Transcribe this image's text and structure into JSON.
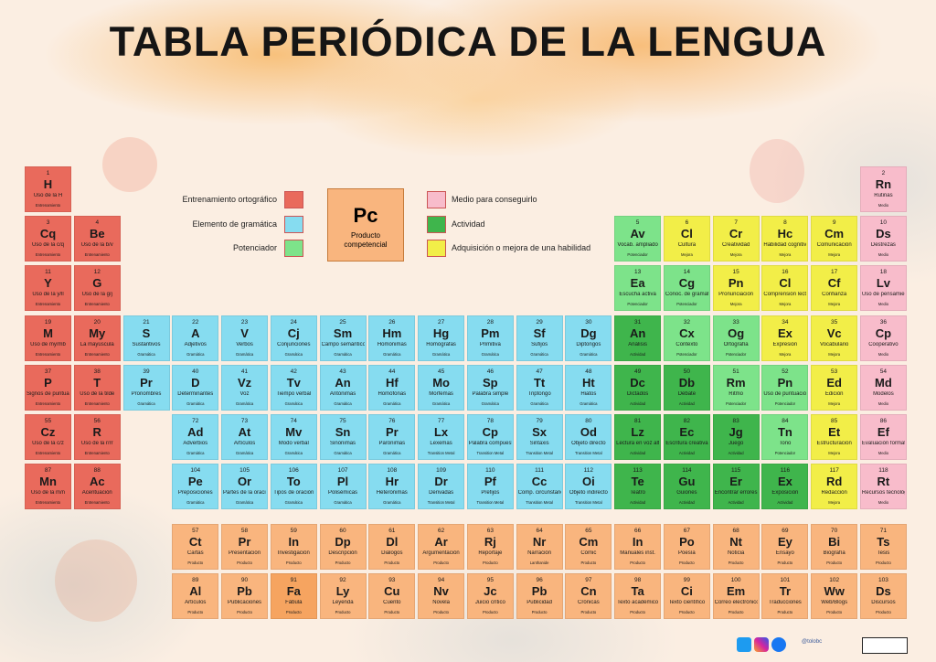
{
  "header": {
    "title": "TABLA PERIÓDICA DE LA LENGUA"
  },
  "legend": [
    {
      "label": "Entrenamiento ortográfico",
      "color": "#e96a5c"
    },
    {
      "label": "Elemento de gramática",
      "color": "#86dcf0"
    },
    {
      "label": "Potenciador",
      "color": "#7de38a"
    },
    {
      "label": "Medio para conseguirlo",
      "color": "#f8bccb"
    },
    {
      "label": "Actividad",
      "color": "#3fb54c"
    },
    {
      "label": "Adquisición o mejora de una habilidad",
      "color": "#f2ee48"
    }
  ],
  "key": {
    "symbol": "Pc",
    "label": "Producto competencial",
    "color": "#f9b57e"
  },
  "rows": [
    {
      "cells": [
        {
          "n": "1",
          "s": "H",
          "name": "Uso de la H",
          "cat": "Entrenamiento",
          "color": "#e96a5c"
        },
        {
          "n": "2",
          "s": "Rn",
          "name": "Rutinas",
          "cat": "Medio",
          "color": "#f8bccb"
        }
      ]
    },
    {
      "cells": [
        {
          "n": "3",
          "s": "Cq",
          "name": "Uso de la c/q",
          "cat": "Entrenamiento",
          "color": "#e96a5c"
        },
        {
          "n": "4",
          "s": "Be",
          "name": "Uso de la b/v",
          "cat": "Entrenamiento",
          "color": "#e96a5c"
        },
        {
          "n": "5",
          "s": "Av",
          "name": "Vocab. ampliado",
          "cat": "Potenciador",
          "color": "#7de38a"
        },
        {
          "n": "6",
          "s": "Cl",
          "name": "Cultura",
          "cat": "Mejora",
          "color": "#f2ee48"
        },
        {
          "n": "7",
          "s": "Cr",
          "name": "Creatividad",
          "cat": "Mejora",
          "color": "#f2ee48"
        },
        {
          "n": "8",
          "s": "Hc",
          "name": "Habilidad cognitiva",
          "cat": "Mejora",
          "color": "#f2ee48"
        },
        {
          "n": "9",
          "s": "Cm",
          "name": "Comunicación",
          "cat": "Mejora",
          "color": "#f2ee48"
        },
        {
          "n": "10",
          "s": "Ds",
          "name": "Destrezas",
          "cat": "Medio",
          "color": "#f8bccb"
        }
      ]
    },
    {
      "cells": [
        {
          "n": "11",
          "s": "Y",
          "name": "Uso de la y/ll",
          "cat": "Entrenamiento",
          "color": "#e96a5c"
        },
        {
          "n": "12",
          "s": "G",
          "name": "Uso de la g/j",
          "cat": "Entrenamiento",
          "color": "#e96a5c"
        },
        {
          "n": "13",
          "s": "Ea",
          "name": "Escucha activa",
          "cat": "Potenciador",
          "color": "#7de38a"
        },
        {
          "n": "14",
          "s": "Cg",
          "name": "Conoc. de gramática",
          "cat": "Potenciador",
          "color": "#7de38a"
        },
        {
          "n": "15",
          "s": "Pn",
          "name": "Pronunciación",
          "cat": "Mejora",
          "color": "#f2ee48"
        },
        {
          "n": "16",
          "s": "Cl",
          "name": "Comprensión lectora",
          "cat": "Mejora",
          "color": "#f2ee48"
        },
        {
          "n": "17",
          "s": "Cf",
          "name": "Confianza",
          "cat": "Mejora",
          "color": "#f2ee48"
        },
        {
          "n": "18",
          "s": "Lv",
          "name": "Uso de pensamiento",
          "cat": "Medio",
          "color": "#f8bccb"
        }
      ]
    },
    {
      "cells": [
        {
          "n": "19",
          "s": "M",
          "name": "Uso de my/mb",
          "cat": "Entrenamiento",
          "color": "#e96a5c"
        },
        {
          "n": "20",
          "s": "My",
          "name": "La mayúscula",
          "cat": "Entrenamiento",
          "color": "#e96a5c"
        },
        {
          "n": "21",
          "s": "S",
          "name": "Sustantivos",
          "cat": "Gramática",
          "color": "#86dcf0"
        },
        {
          "n": "22",
          "s": "A",
          "name": "Adjetivos",
          "cat": "Gramática",
          "color": "#86dcf0"
        },
        {
          "n": "23",
          "s": "V",
          "name": "Verbos",
          "cat": "Gramática",
          "color": "#86dcf0"
        },
        {
          "n": "24",
          "s": "Cj",
          "name": "Conjunciones",
          "cat": "Gramática",
          "color": "#86dcf0"
        },
        {
          "n": "25",
          "s": "Sm",
          "name": "Campo semántico",
          "cat": "Gramática",
          "color": "#86dcf0"
        },
        {
          "n": "26",
          "s": "Hm",
          "name": "Homónimas",
          "cat": "Gramática",
          "color": "#86dcf0"
        },
        {
          "n": "27",
          "s": "Hg",
          "name": "Homógrafas",
          "cat": "Gramática",
          "color": "#86dcf0"
        },
        {
          "n": "28",
          "s": "Pm",
          "name": "Primitiva",
          "cat": "Gramática",
          "color": "#86dcf0"
        },
        {
          "n": "29",
          "s": "Sf",
          "name": "Sufijos",
          "cat": "Gramática",
          "color": "#86dcf0"
        },
        {
          "n": "30",
          "s": "Dg",
          "name": "Diptongos",
          "cat": "Gramática",
          "color": "#86dcf0"
        },
        {
          "n": "31",
          "s": "An",
          "name": "Análisis",
          "cat": "Actividad",
          "color": "#3fb54c"
        },
        {
          "n": "32",
          "s": "Cx",
          "name": "Contexto",
          "cat": "Potenciador",
          "color": "#7de38a"
        },
        {
          "n": "33",
          "s": "Og",
          "name": "Ortografía",
          "cat": "Potenciador",
          "color": "#7de38a"
        },
        {
          "n": "34",
          "s": "Ex",
          "name": "Expresión",
          "cat": "Mejora",
          "color": "#f2ee48"
        },
        {
          "n": "35",
          "s": "Vc",
          "name": "Vocabulario",
          "cat": "Mejora",
          "color": "#f2ee48"
        },
        {
          "n": "36",
          "s": "Cp",
          "name": "Cooperativo",
          "cat": "Medio",
          "color": "#f8bccb"
        }
      ]
    },
    {
      "cells": [
        {
          "n": "37",
          "s": "P",
          "name": "Signos de puntuación",
          "cat": "Entrenamiento",
          "color": "#e96a5c"
        },
        {
          "n": "38",
          "s": "T",
          "name": "Uso de la tilde",
          "cat": "Entrenamiento",
          "color": "#e96a5c"
        },
        {
          "n": "39",
          "s": "Pr",
          "name": "Pronombres",
          "cat": "Gramática",
          "color": "#86dcf0"
        },
        {
          "n": "40",
          "s": "D",
          "name": "Determinantes",
          "cat": "Gramática",
          "color": "#86dcf0"
        },
        {
          "n": "41",
          "s": "Vz",
          "name": "Voz",
          "cat": "Gramática",
          "color": "#86dcf0"
        },
        {
          "n": "42",
          "s": "Tv",
          "name": "Tiempo verbal",
          "cat": "Gramática",
          "color": "#86dcf0"
        },
        {
          "n": "43",
          "s": "An",
          "name": "Antónimas",
          "cat": "Gramática",
          "color": "#86dcf0"
        },
        {
          "n": "44",
          "s": "Hf",
          "name": "Homófonas",
          "cat": "Gramática",
          "color": "#86dcf0"
        },
        {
          "n": "45",
          "s": "Mo",
          "name": "Morfemas",
          "cat": "Gramática",
          "color": "#86dcf0"
        },
        {
          "n": "46",
          "s": "Sp",
          "name": "Palabra simple",
          "cat": "Gramática",
          "color": "#86dcf0"
        },
        {
          "n": "47",
          "s": "Tt",
          "name": "Triptongo",
          "cat": "Gramática",
          "color": "#86dcf0"
        },
        {
          "n": "48",
          "s": "Ht",
          "name": "Hiatos",
          "cat": "Gramática",
          "color": "#86dcf0"
        },
        {
          "n": "49",
          "s": "Dc",
          "name": "Dictados",
          "cat": "Actividad",
          "color": "#3fb54c"
        },
        {
          "n": "50",
          "s": "Db",
          "name": "Debate",
          "cat": "Actividad",
          "color": "#3fb54c"
        },
        {
          "n": "51",
          "s": "Rm",
          "name": "Ritmo",
          "cat": "Potenciador",
          "color": "#7de38a"
        },
        {
          "n": "52",
          "s": "Pn",
          "name": "Uso de puntuación",
          "cat": "Potenciador",
          "color": "#7de38a"
        },
        {
          "n": "53",
          "s": "Ed",
          "name": "Edición",
          "cat": "Mejora",
          "color": "#f2ee48"
        },
        {
          "n": "54",
          "s": "Md",
          "name": "Modelos",
          "cat": "Medio",
          "color": "#f8bccb"
        }
      ]
    },
    {
      "cells": [
        {
          "n": "55",
          "s": "Cz",
          "name": "Uso de la c/z",
          "cat": "Entrenamiento",
          "color": "#e96a5c"
        },
        {
          "n": "56",
          "s": "R",
          "name": "Uso de la r/rr",
          "cat": "Entrenamiento",
          "color": "#e96a5c"
        },
        {
          "n": "72",
          "s": "Ad",
          "name": "Adverbios",
          "cat": "Gramática",
          "color": "#86dcf0"
        },
        {
          "n": "73",
          "s": "At",
          "name": "Artículos",
          "cat": "Gramática",
          "color": "#86dcf0"
        },
        {
          "n": "74",
          "s": "Mv",
          "name": "Modo verbal",
          "cat": "Gramática",
          "color": "#86dcf0"
        },
        {
          "n": "75",
          "s": "Sn",
          "name": "Sinónimas",
          "cat": "Gramática",
          "color": "#86dcf0"
        },
        {
          "n": "76",
          "s": "Pr",
          "name": "Parónimas",
          "cat": "Gramática",
          "color": "#86dcf0"
        },
        {
          "n": "77",
          "s": "Lx",
          "name": "Lexemas",
          "cat": "Transition Metal",
          "color": "#86dcf0"
        },
        {
          "n": "78",
          "s": "Cp",
          "name": "Palabra compuesta",
          "cat": "Transition Metal",
          "color": "#86dcf0"
        },
        {
          "n": "79",
          "s": "Sx",
          "name": "Sintaxis",
          "cat": "Transition Metal",
          "color": "#86dcf0"
        },
        {
          "n": "80",
          "s": "Od",
          "name": "Objeto directo",
          "cat": "Transition Metal",
          "color": "#86dcf0"
        },
        {
          "n": "81",
          "s": "Lz",
          "name": "Lectura en voz alta",
          "cat": "Actividad",
          "color": "#3fb54c"
        },
        {
          "n": "82",
          "s": "Ec",
          "name": "Escritura creativa",
          "cat": "Actividad",
          "color": "#3fb54c"
        },
        {
          "n": "83",
          "s": "Jg",
          "name": "Juego",
          "cat": "Actividad",
          "color": "#3fb54c"
        },
        {
          "n": "84",
          "s": "Tn",
          "name": "Tono",
          "cat": "Potenciador",
          "color": "#7de38a"
        },
        {
          "n": "85",
          "s": "Et",
          "name": "Estructuración",
          "cat": "Mejora",
          "color": "#f2ee48"
        },
        {
          "n": "86",
          "s": "Ef",
          "name": "Evaluación formativa",
          "cat": "Medio",
          "color": "#f8bccb"
        }
      ]
    },
    {
      "cells": [
        {
          "n": "87",
          "s": "Mn",
          "name": "Uso de la m/n",
          "cat": "Entrenamiento",
          "color": "#e96a5c"
        },
        {
          "n": "88",
          "s": "Ac",
          "name": "Acentuación",
          "cat": "Entrenamiento",
          "color": "#e96a5c"
        },
        {
          "n": "104",
          "s": "Pe",
          "name": "Preposiciones",
          "cat": "Gramática",
          "color": "#86dcf0"
        },
        {
          "n": "105",
          "s": "Or",
          "name": "Partes de la oración",
          "cat": "Gramática",
          "color": "#86dcf0"
        },
        {
          "n": "106",
          "s": "To",
          "name": "Tipos de oración",
          "cat": "Gramática",
          "color": "#86dcf0"
        },
        {
          "n": "107",
          "s": "Pl",
          "name": "Polisémicas",
          "cat": "Gramática",
          "color": "#86dcf0"
        },
        {
          "n": "108",
          "s": "Hr",
          "name": "Heterónimas",
          "cat": "Gramática",
          "color": "#86dcf0"
        },
        {
          "n": "109",
          "s": "Dr",
          "name": "Derivadas",
          "cat": "Transition Metal",
          "color": "#86dcf0"
        },
        {
          "n": "110",
          "s": "Pf",
          "name": "Prefijos",
          "cat": "Transition Metal",
          "color": "#86dcf0"
        },
        {
          "n": "111",
          "s": "Cc",
          "name": "Comp. circunstancial",
          "cat": "Transition Metal",
          "color": "#86dcf0"
        },
        {
          "n": "112",
          "s": "Oi",
          "name": "Objeto indirecto",
          "cat": "Transition Metal",
          "color": "#86dcf0"
        },
        {
          "n": "113",
          "s": "Te",
          "name": "Teatro",
          "cat": "Actividad",
          "color": "#3fb54c"
        },
        {
          "n": "114",
          "s": "Gu",
          "name": "Guiones",
          "cat": "Actividad",
          "color": "#3fb54c"
        },
        {
          "n": "115",
          "s": "Er",
          "name": "Encontrar errores",
          "cat": "Actividad",
          "color": "#3fb54c"
        },
        {
          "n": "116",
          "s": "Ex",
          "name": "Exposición",
          "cat": "Actividad",
          "color": "#3fb54c"
        },
        {
          "n": "117",
          "s": "Rd",
          "name": "Redacción",
          "cat": "Mejora",
          "color": "#f2ee48"
        },
        {
          "n": "118",
          "s": "Rt",
          "name": "Recursos tecnológicos",
          "cat": "Medio",
          "color": "#f8bccb"
        }
      ]
    }
  ],
  "lanthanides": {
    "cells": [
      {
        "n": "57",
        "s": "Ct",
        "name": "Cartas",
        "cat": "Producto",
        "color": "#f9b57e"
      },
      {
        "n": "58",
        "s": "Pr",
        "name": "Presentación",
        "cat": "Producto",
        "color": "#f9b57e"
      },
      {
        "n": "59",
        "s": "In",
        "name": "Investigación",
        "cat": "Producto",
        "color": "#f9b57e"
      },
      {
        "n": "60",
        "s": "Dp",
        "name": "Descripción",
        "cat": "Producto",
        "color": "#f9b57e"
      },
      {
        "n": "61",
        "s": "Dl",
        "name": "Diálogos",
        "cat": "Producto",
        "color": "#f9b57e"
      },
      {
        "n": "62",
        "s": "Ar",
        "name": "Argumentación",
        "cat": "Producto",
        "color": "#f9b57e"
      },
      {
        "n": "63",
        "s": "Rj",
        "name": "Reportaje",
        "cat": "Producto",
        "color": "#f9b57e"
      },
      {
        "n": "64",
        "s": "Nr",
        "name": "Narración",
        "cat": "Lanthanide",
        "color": "#f9b57e"
      },
      {
        "n": "65",
        "s": "Cm",
        "name": "Cómic",
        "cat": "Producto",
        "color": "#f9b57e"
      },
      {
        "n": "66",
        "s": "In",
        "name": "Manuales inst.",
        "cat": "Producto",
        "color": "#f9b57e"
      },
      {
        "n": "67",
        "s": "Po",
        "name": "Poesía",
        "cat": "Producto",
        "color": "#f9b57e"
      },
      {
        "n": "68",
        "s": "Nt",
        "name": "Noticia",
        "cat": "Producto",
        "color": "#f9b57e"
      },
      {
        "n": "69",
        "s": "Ey",
        "name": "Ensayo",
        "cat": "Producto",
        "color": "#f9b57e"
      },
      {
        "n": "70",
        "s": "Bi",
        "name": "Biografía",
        "cat": "Producto",
        "color": "#f9b57e"
      },
      {
        "n": "71",
        "s": "Ts",
        "name": "Tesis",
        "cat": "Producto",
        "color": "#f9b57e"
      }
    ]
  },
  "actinides": {
    "cells": [
      {
        "n": "89",
        "s": "Al",
        "name": "Artículos",
        "cat": "Producto",
        "color": "#f9b57e"
      },
      {
        "n": "90",
        "s": "Pb",
        "name": "Publicaciones",
        "cat": "Producto",
        "color": "#f9b57e"
      },
      {
        "n": "91",
        "s": "Fa",
        "name": "Fábula",
        "cat": "Producto",
        "color": "#f6a460"
      },
      {
        "n": "92",
        "s": "Ly",
        "name": "Leyenda",
        "cat": "Producto",
        "color": "#f9b57e"
      },
      {
        "n": "93",
        "s": "Cu",
        "name": "Cuento",
        "cat": "Producto",
        "color": "#f9b57e"
      },
      {
        "n": "94",
        "s": "Nv",
        "name": "Novela",
        "cat": "Producto",
        "color": "#f9b57e"
      },
      {
        "n": "95",
        "s": "Jc",
        "name": "Juicio crítico",
        "cat": "Producto",
        "color": "#f9b57e"
      },
      {
        "n": "96",
        "s": "Pb",
        "name": "Publicidad",
        "cat": "Producto",
        "color": "#f9b57e"
      },
      {
        "n": "97",
        "s": "Cn",
        "name": "Crónicas",
        "cat": "Producto",
        "color": "#f9b57e"
      },
      {
        "n": "98",
        "s": "Ta",
        "name": "Texto académico",
        "cat": "Producto",
        "color": "#f9b57e"
      },
      {
        "n": "99",
        "s": "Ci",
        "name": "Texto científico",
        "cat": "Producto",
        "color": "#f9b57e"
      },
      {
        "n": "100",
        "s": "Em",
        "name": "Correo electrónico",
        "cat": "Producto",
        "color": "#f9b57e"
      },
      {
        "n": "101",
        "s": "Tr",
        "name": "Traducciones",
        "cat": "Producto",
        "color": "#f9b57e"
      },
      {
        "n": "102",
        "s": "Ww",
        "name": "Web/Blogs",
        "cat": "Producto",
        "color": "#f9b57e"
      },
      {
        "n": "103",
        "s": "Ds",
        "name": "Discursos",
        "cat": "Producto",
        "color": "#f9b57e"
      }
    ]
  },
  "footer": {
    "handle": "@tolobc"
  }
}
